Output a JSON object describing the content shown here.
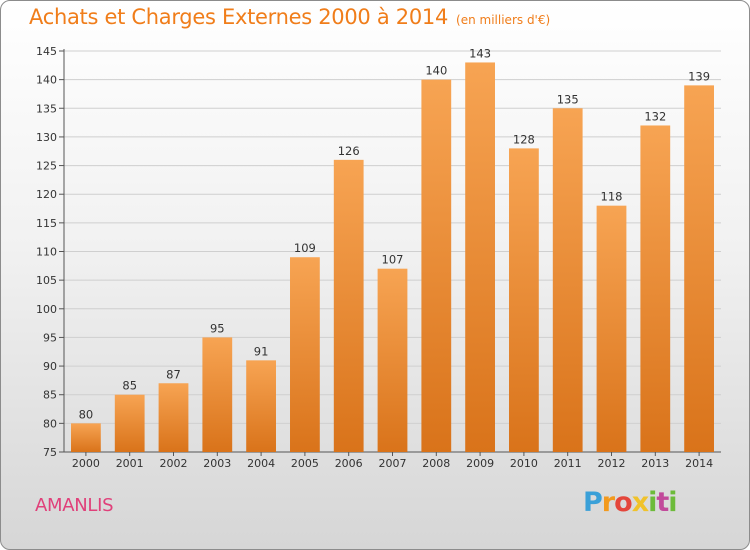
{
  "header": {
    "title": "Achats et Charges Externes 2000 à 2014",
    "unit": "(en milliers d'€)"
  },
  "footer": {
    "commune": "AMANLIS",
    "logo": "Proxiti"
  },
  "colors": {
    "accent": "#f07d1a",
    "commune": "#e0407a",
    "bar_top": "#f7a453",
    "bar_bottom": "#d9731a"
  },
  "chart_data": {
    "type": "bar",
    "title": "Achats et Charges Externes 2000 à 2014",
    "subtitle": "(en milliers d'€)",
    "xlabel": "",
    "ylabel": "",
    "categories": [
      "2000",
      "2001",
      "2002",
      "2003",
      "2004",
      "2005",
      "2006",
      "2007",
      "2008",
      "2009",
      "2010",
      "2011",
      "2012",
      "2013",
      "2014"
    ],
    "values": [
      80,
      85,
      87,
      95,
      91,
      109,
      126,
      107,
      140,
      143,
      128,
      135,
      118,
      132,
      139
    ],
    "ylim": [
      75,
      145
    ],
    "yticks": [
      75,
      80,
      85,
      90,
      95,
      100,
      105,
      110,
      115,
      120,
      125,
      130,
      135,
      140,
      145
    ],
    "grid": true,
    "data_labels": true
  }
}
